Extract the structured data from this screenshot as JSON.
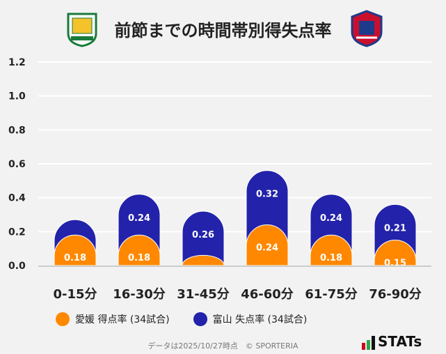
{
  "title": "前節までの時間帯別得失点率",
  "chart_data": {
    "type": "bar",
    "stacked": true,
    "title": "前節までの時間帯別得失点率",
    "categories": [
      "0-15分",
      "16-30分",
      "31-45分",
      "46-60分",
      "61-75分",
      "76-90分"
    ],
    "series": [
      {
        "name": "愛媛 得点率 (34試合)",
        "color": "#ff8800",
        "values": [
          0.18,
          0.18,
          0.06,
          0.24,
          0.18,
          0.15
        ],
        "labels": [
          "0.18",
          "0.18",
          "",
          "0.24",
          "0.18",
          "0.15"
        ]
      },
      {
        "name": "富山 失点率 (34試合)",
        "color": "#2222aa",
        "values": [
          0.09,
          0.24,
          0.26,
          0.32,
          0.24,
          0.21
        ],
        "labels": [
          "",
          "0.24",
          "0.26",
          "0.32",
          "0.24",
          "0.21"
        ]
      }
    ],
    "yticks": [
      "0.0",
      "0.2",
      "0.4",
      "0.6",
      "0.8",
      "1.0",
      "1.2"
    ],
    "ylim": [
      0,
      1.2
    ],
    "grid": true,
    "legend": "bottom"
  },
  "footer": "データは2025/10/27時点　© SPORTERIA",
  "brand": "STATs"
}
